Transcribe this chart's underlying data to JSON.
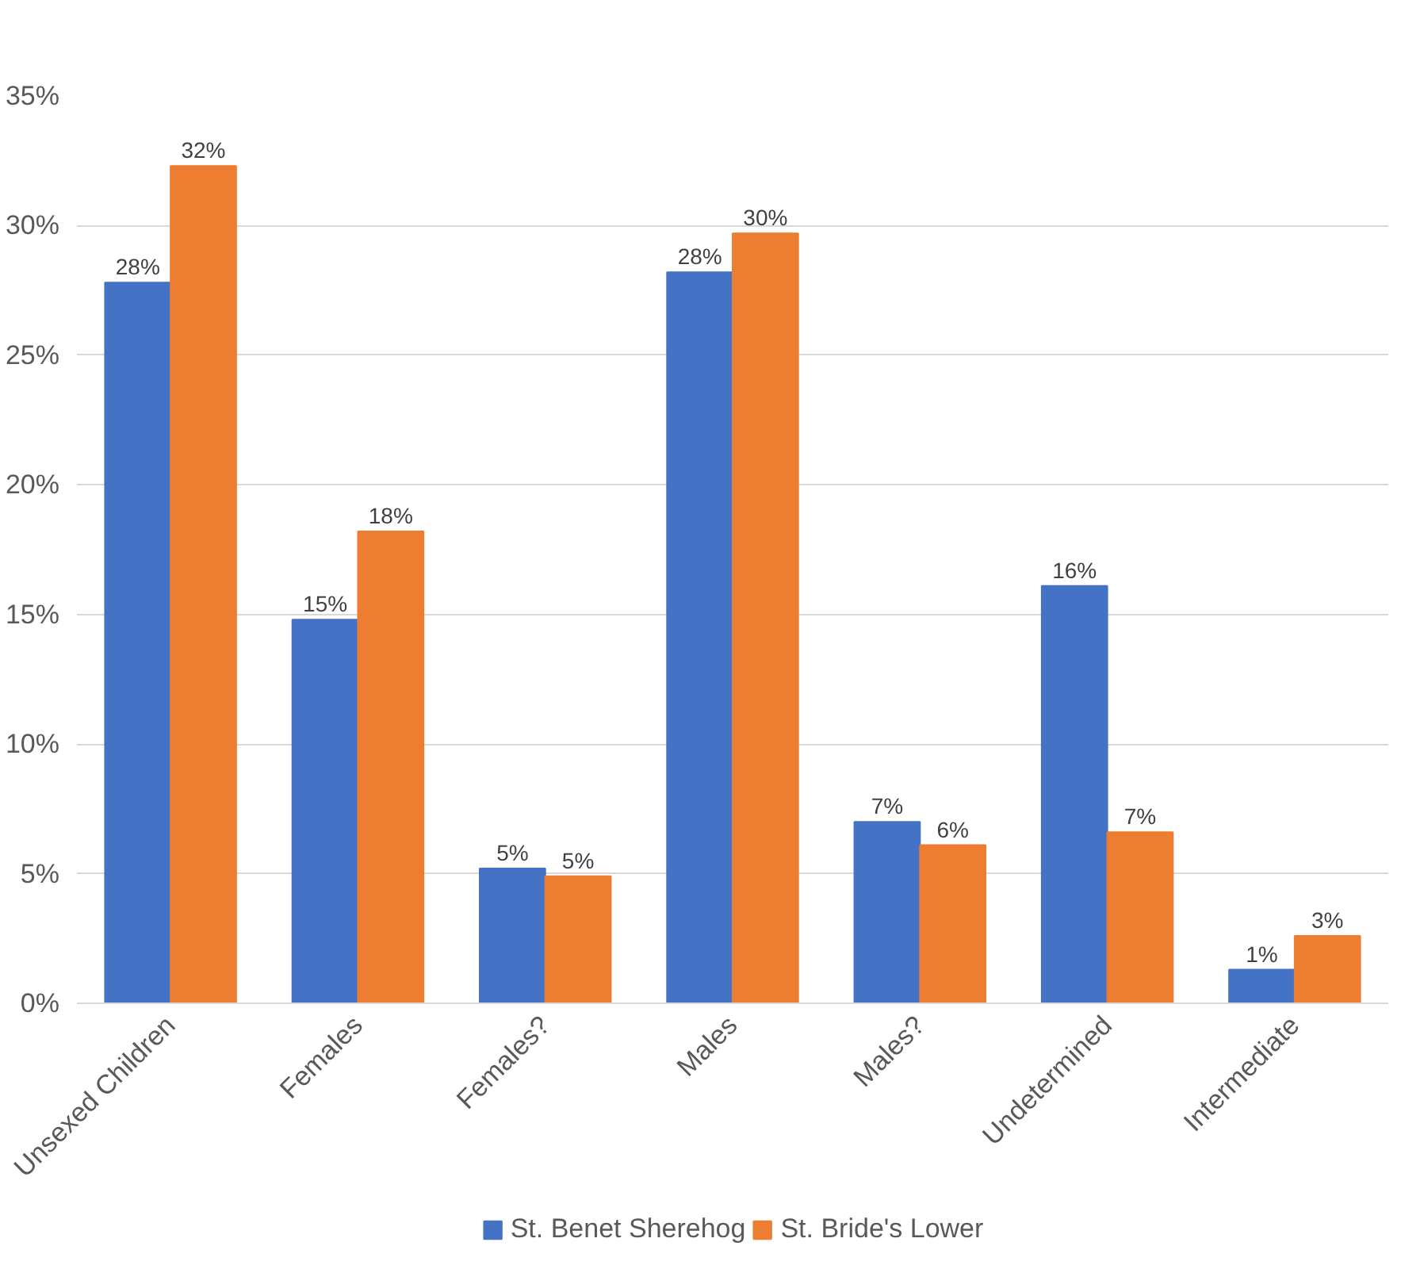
{
  "chart_data": {
    "type": "bar",
    "categories": [
      "Unsexed Children",
      "Females",
      "Females?",
      "Males",
      "Males?",
      "Undetermined",
      "Intermediate"
    ],
    "series": [
      {
        "name": "St. Benet Sherehog",
        "color": "#4472c4",
        "values": [
          27.8,
          14.8,
          5.2,
          28.2,
          7.0,
          16.1,
          1.3
        ],
        "value_labels": [
          "28%",
          "15%",
          "5%",
          "28%",
          "7%",
          "16%",
          "1%"
        ]
      },
      {
        "name": "St. Bride's Lower",
        "color": "#ed7d31",
        "values": [
          32.3,
          18.2,
          4.9,
          29.7,
          6.1,
          6.6,
          2.6
        ],
        "value_labels": [
          "32%",
          "18%",
          "5%",
          "30%",
          "6%",
          "7%",
          "3%"
        ]
      }
    ],
    "ylim": [
      0,
      35
    ],
    "yticks": [
      {
        "value": 0,
        "label": "0%"
      },
      {
        "value": 5,
        "label": "5%"
      },
      {
        "value": 10,
        "label": "10%"
      },
      {
        "value": 15,
        "label": "15%"
      },
      {
        "value": 20,
        "label": "20%"
      },
      {
        "value": 25,
        "label": "25%"
      },
      {
        "value": 30,
        "label": "30%"
      },
      {
        "value": 35,
        "label": "35%"
      }
    ],
    "grid": "y",
    "legend": "bottom"
  }
}
